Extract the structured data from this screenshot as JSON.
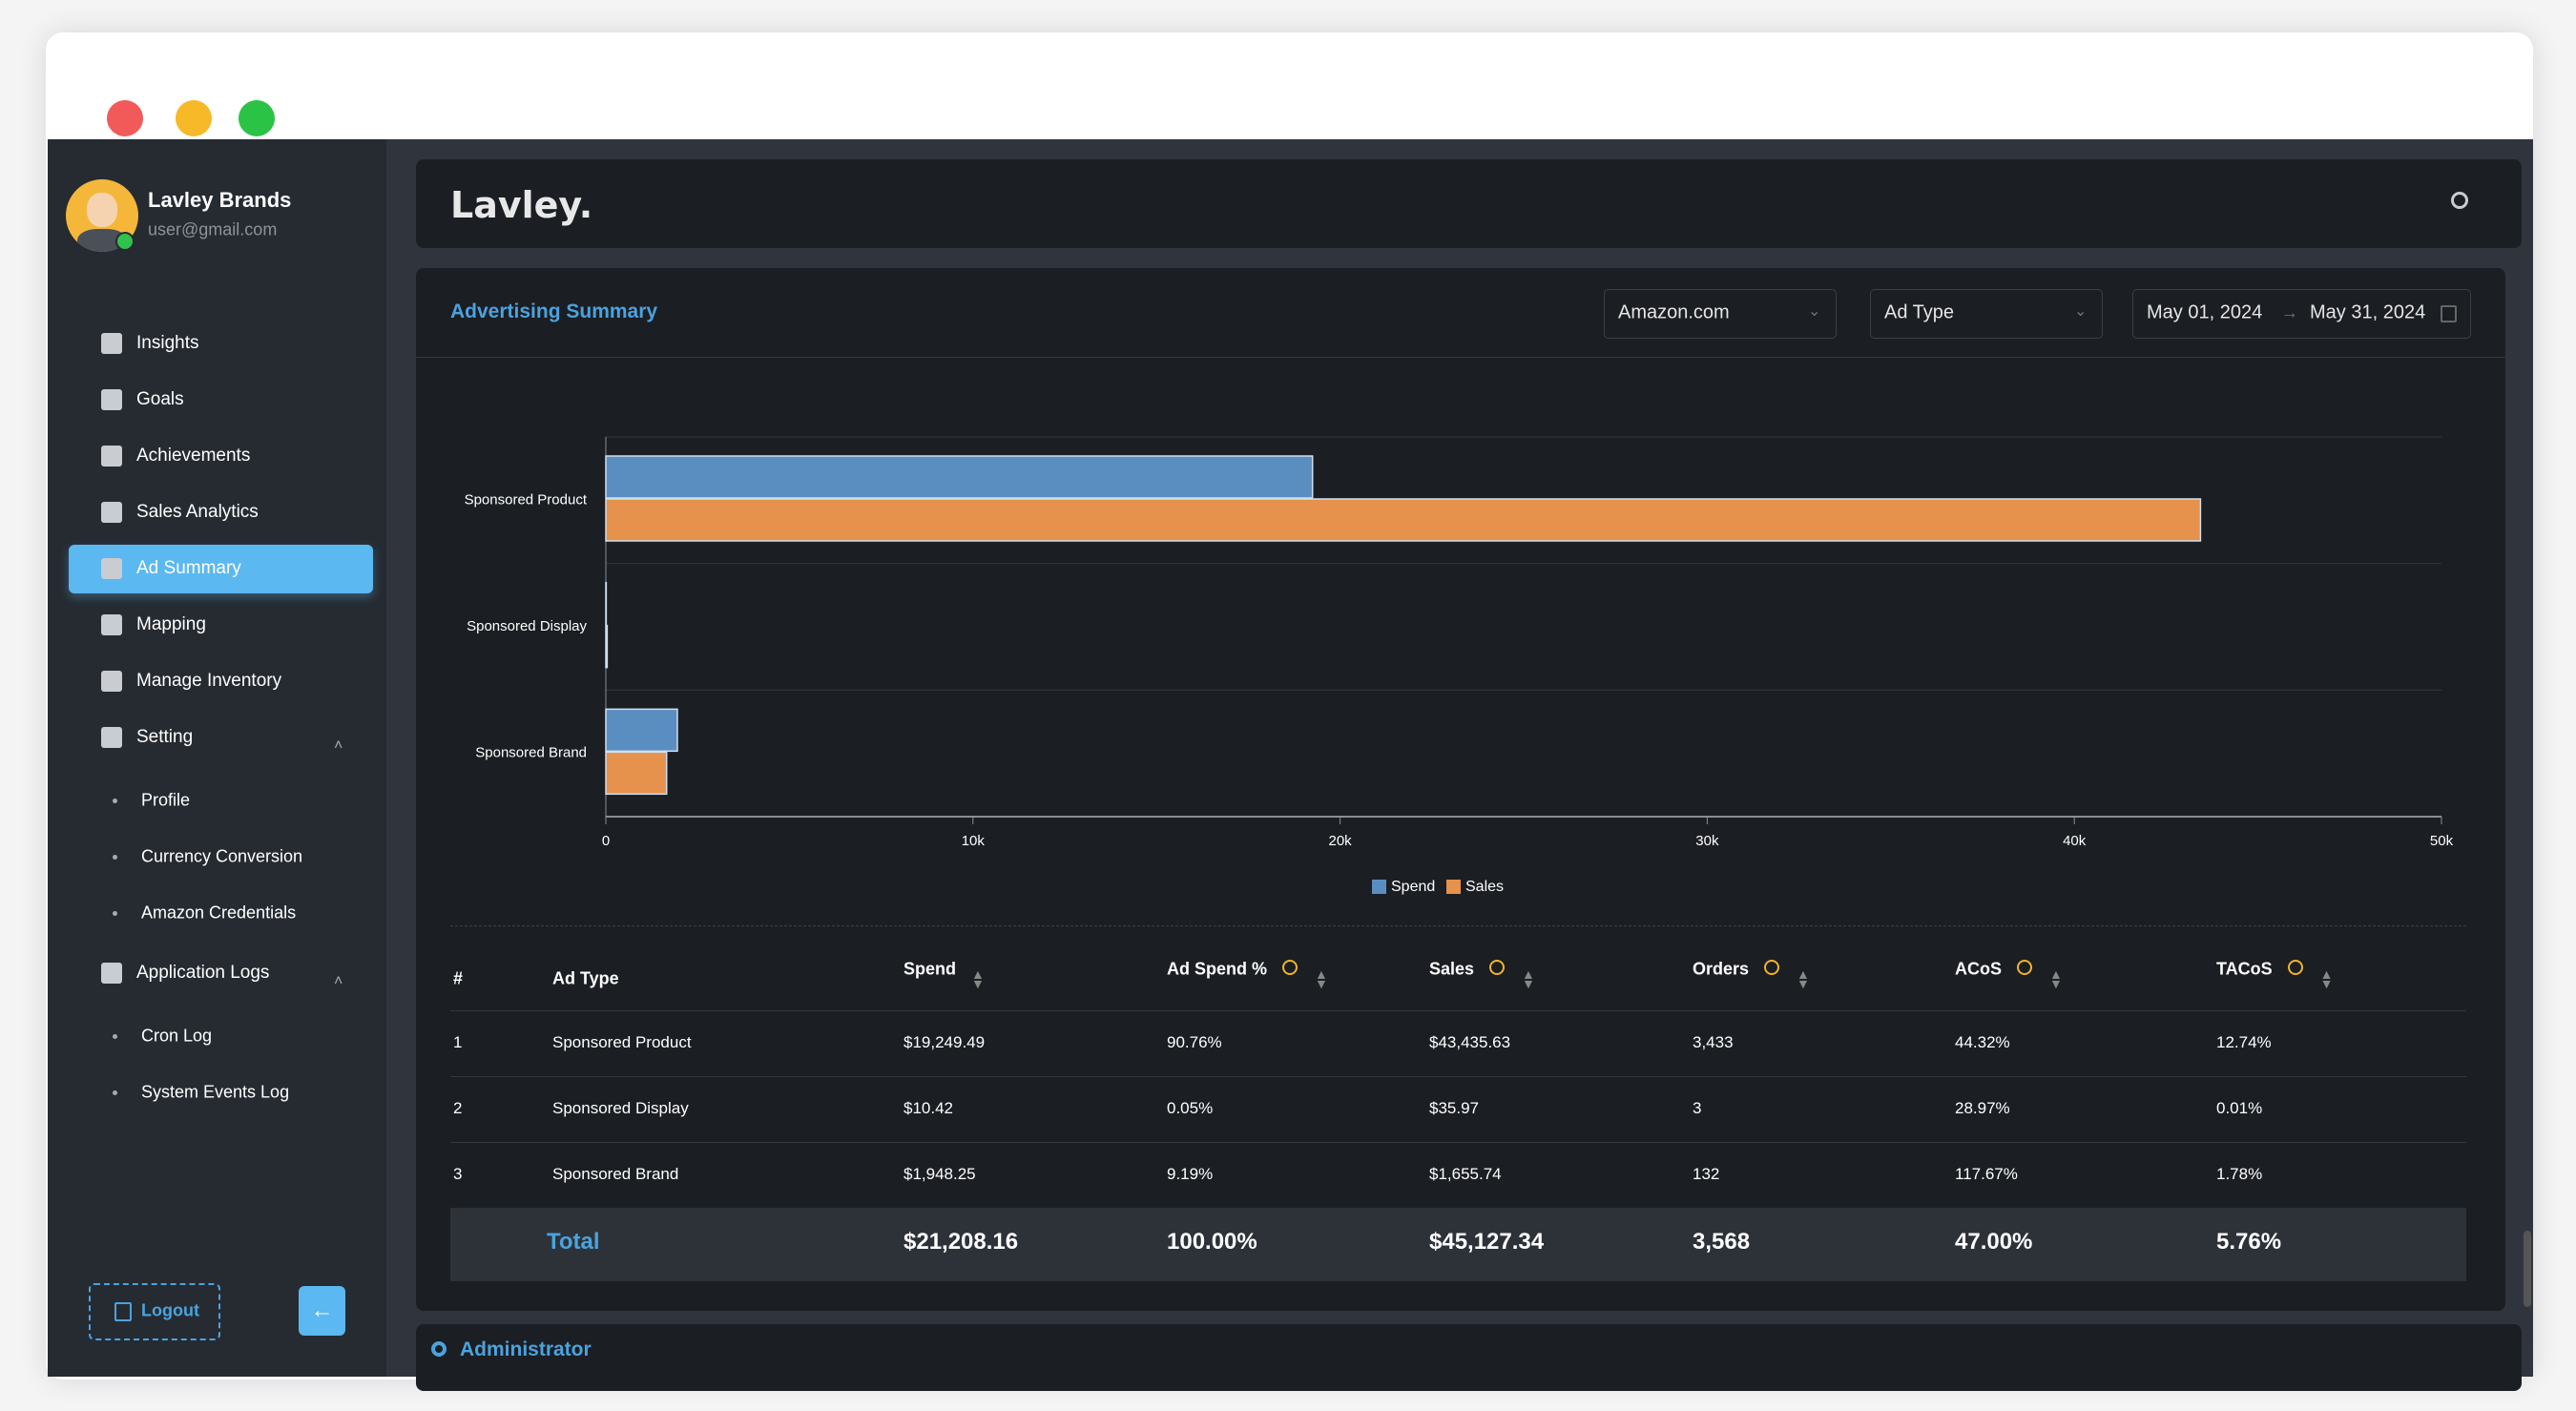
{
  "sidebar": {
    "user_name": "Lavley Brands",
    "user_email": "user@gmail.com",
    "menu": [
      {
        "label": "Insights"
      },
      {
        "label": "Goals"
      },
      {
        "label": "Achievements"
      },
      {
        "label": "Sales Analytics"
      },
      {
        "label": "Ad Summary",
        "active": true
      },
      {
        "label": "Mapping"
      },
      {
        "label": "Manage Inventory"
      },
      {
        "label": "Setting",
        "children": [
          "Profile",
          "Currency Conversion",
          "Amazon Credentials"
        ]
      },
      {
        "label": "Application Logs",
        "children": [
          "Cron Log",
          "System Events Log"
        ]
      }
    ],
    "logout": "Logout"
  },
  "header": {
    "logo": "Lavley."
  },
  "panel": {
    "title": "Advertising Summary",
    "filters": {
      "marketplace": "Amazon.com",
      "ad_type": "Ad Type",
      "date_from": "May 01, 2024",
      "date_separator": "→",
      "date_to": "May 31, 2024"
    }
  },
  "chart_data": {
    "type": "hbar",
    "categories": [
      "Sponsored Product",
      "Sponsored Display",
      "Sponsored Brand"
    ],
    "series": [
      {
        "name": "Spend",
        "color": "#5b8ec0",
        "values": [
          19249.49,
          10.42,
          1948.25
        ]
      },
      {
        "name": "Sales",
        "color": "#e6914c",
        "values": [
          43435.63,
          35.97,
          1655.74
        ]
      }
    ],
    "xlim": [
      0,
      50000
    ],
    "xticks": [
      0,
      {
        "value": 10000,
        "label": "10k"
      },
      {
        "value": 20000,
        "label": "20k"
      },
      {
        "value": 30000,
        "label": "30k"
      },
      {
        "value": 40000,
        "label": "40k"
      },
      {
        "value": 50000,
        "label": "50k"
      }
    ]
  },
  "table": {
    "columns": [
      "#",
      "Ad Type",
      "Spend",
      "Ad Spend %",
      "Sales",
      "Orders",
      "ACoS",
      "TACoS"
    ],
    "rows": [
      [
        "1",
        "Sponsored Product",
        "$19,249.49",
        "90.76%",
        "$43,435.63",
        "3,433",
        "44.32%",
        "12.74%"
      ],
      [
        "2",
        "Sponsored Display",
        "$10.42",
        "0.05%",
        "$35.97",
        "3",
        "28.97%",
        "0.01%"
      ],
      [
        "3",
        "Sponsored Brand",
        "$1,948.25",
        "9.19%",
        "$1,655.74",
        "132",
        "117.67%",
        "1.78%"
      ]
    ],
    "total": [
      "Total",
      "$21,208.16",
      "100.00%",
      "$45,127.34",
      "3,568",
      "47.00%",
      "5.76%"
    ]
  },
  "footer_panel": {
    "title": "Administrator"
  }
}
